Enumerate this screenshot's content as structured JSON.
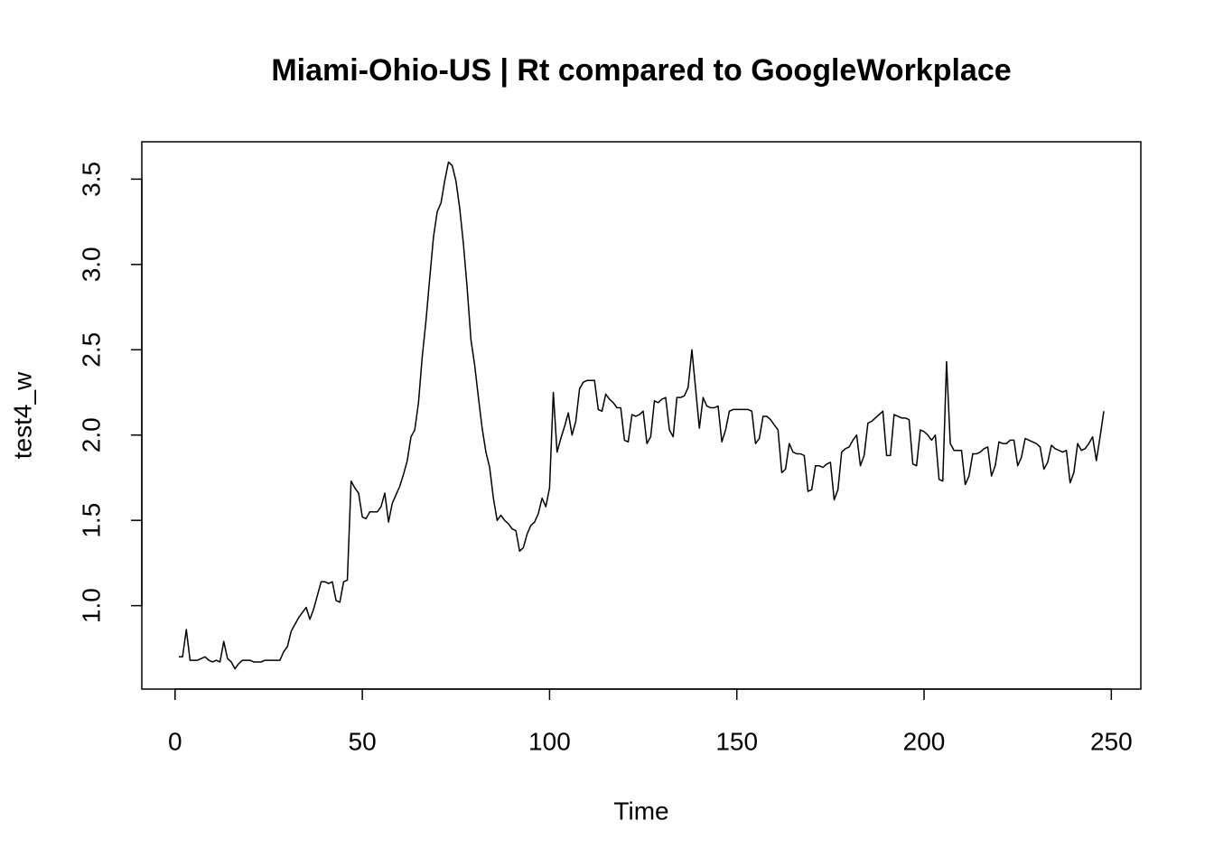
{
  "chart_data": {
    "type": "line",
    "title": "Miami-Ohio-US | Rt compared to GoogleWorkplace",
    "xlabel": "Time",
    "ylabel": "test4_w",
    "color": "#000000",
    "xlim": [
      -8.88,
      257.88
    ],
    "ylim": [
      0.511,
      3.719
    ],
    "xticks": [
      0,
      50,
      100,
      150,
      200,
      250
    ],
    "yticks": [
      {
        "value": 1,
        "label": "1.0"
      },
      1.5,
      {
        "value": 2,
        "label": "2.0"
      },
      2.5,
      {
        "value": 3,
        "label": "3.0"
      },
      3.5
    ],
    "x": [
      1,
      2,
      3,
      4,
      5,
      6,
      7,
      8,
      9,
      10,
      11,
      12,
      13,
      14,
      15,
      16,
      17,
      18,
      19,
      20,
      21,
      22,
      23,
      24,
      25,
      26,
      27,
      28,
      29,
      30,
      31,
      32,
      33,
      34,
      35,
      36,
      37,
      38,
      39,
      40,
      41,
      42,
      43,
      44,
      45,
      46,
      47,
      48,
      49,
      50,
      51,
      52,
      53,
      54,
      55,
      56,
      57,
      58,
      59,
      60,
      61,
      62,
      63,
      64,
      65,
      66,
      67,
      68,
      69,
      70,
      71,
      72,
      73,
      74,
      75,
      76,
      77,
      78,
      79,
      80,
      81,
      82,
      83,
      84,
      85,
      86,
      87,
      88,
      89,
      90,
      91,
      92,
      93,
      94,
      95,
      96,
      97,
      98,
      99,
      100,
      101,
      102,
      103,
      104,
      105,
      106,
      107,
      108,
      109,
      110,
      111,
      112,
      113,
      114,
      115,
      116,
      117,
      118,
      119,
      120,
      121,
      122,
      123,
      124,
      125,
      126,
      127,
      128,
      129,
      130,
      131,
      132,
      133,
      134,
      135,
      136,
      137,
      138,
      139,
      140,
      141,
      142,
      143,
      144,
      145,
      146,
      147,
      148,
      149,
      150,
      151,
      152,
      153,
      154,
      155,
      156,
      157,
      158,
      159,
      160,
      161,
      162,
      163,
      164,
      165,
      166,
      167,
      168,
      169,
      170,
      171,
      172,
      173,
      174,
      175,
      176,
      177,
      178,
      179,
      180,
      181,
      182,
      183,
      184,
      185,
      186,
      187,
      188,
      189,
      190,
      191,
      192,
      193,
      194,
      195,
      196,
      197,
      198,
      199,
      200,
      201,
      202,
      203,
      204,
      205,
      206,
      207,
      208,
      209,
      210,
      211,
      212,
      213,
      214,
      215,
      216,
      217,
      218,
      219,
      220,
      221,
      222,
      223,
      224,
      225,
      226,
      227,
      228,
      229,
      230,
      231,
      232,
      233,
      234,
      235,
      236,
      237,
      238,
      239,
      240,
      241,
      242,
      243,
      244,
      245,
      246,
      247,
      248
    ],
    "values": [
      0.7,
      0.7,
      0.86,
      0.68,
      0.68,
      0.68,
      0.69,
      0.7,
      0.68,
      0.67,
      0.68,
      0.67,
      0.79,
      0.69,
      0.67,
      0.63,
      0.66,
      0.68,
      0.68,
      0.68,
      0.67,
      0.67,
      0.67,
      0.68,
      0.68,
      0.68,
      0.68,
      0.68,
      0.73,
      0.76,
      0.85,
      0.89,
      0.93,
      0.96,
      0.99,
      0.92,
      0.98,
      1.06,
      1.14,
      1.14,
      1.13,
      1.14,
      1.03,
      1.02,
      1.14,
      1.15,
      1.73,
      1.69,
      1.66,
      1.52,
      1.51,
      1.55,
      1.55,
      1.55,
      1.58,
      1.66,
      1.49,
      1.6,
      1.65,
      1.7,
      1.77,
      1.85,
      1.99,
      2.03,
      2.19,
      2.46,
      2.67,
      2.92,
      3.16,
      3.31,
      3.36,
      3.49,
      3.6,
      3.58,
      3.49,
      3.33,
      3.12,
      2.86,
      2.56,
      2.41,
      2.22,
      2.04,
      1.9,
      1.81,
      1.63,
      1.5,
      1.53,
      1.5,
      1.48,
      1.45,
      1.44,
      1.32,
      1.34,
      1.42,
      1.47,
      1.49,
      1.54,
      1.63,
      1.58,
      1.69,
      2.25,
      1.9,
      1.98,
      2.05,
      2.13,
      2.0,
      2.08,
      2.27,
      2.31,
      2.32,
      2.32,
      2.32,
      2.15,
      2.14,
      2.24,
      2.21,
      2.19,
      2.16,
      2.16,
      1.97,
      1.96,
      2.12,
      2.11,
      2.12,
      2.14,
      1.95,
      1.99,
      2.2,
      2.19,
      2.21,
      2.22,
      2.03,
      1.99,
      2.22,
      2.22,
      2.23,
      2.28,
      2.5,
      2.27,
      2.04,
      2.22,
      2.17,
      2.16,
      2.16,
      2.17,
      1.96,
      2.03,
      2.14,
      2.15,
      2.15,
      2.15,
      2.15,
      2.15,
      2.14,
      1.95,
      1.98,
      2.11,
      2.11,
      2.09,
      2.06,
      2.03,
      1.78,
      1.8,
      1.95,
      1.9,
      1.89,
      1.89,
      1.88,
      1.67,
      1.68,
      1.82,
      1.82,
      1.81,
      1.83,
      1.84,
      1.62,
      1.68,
      1.9,
      1.92,
      1.93,
      1.97,
      2.0,
      1.82,
      1.88,
      2.07,
      2.08,
      2.1,
      2.12,
      2.14,
      1.88,
      1.88,
      2.12,
      2.11,
      2.1,
      2.1,
      2.09,
      1.83,
      1.82,
      2.03,
      2.02,
      2.0,
      1.97,
      2.0,
      1.74,
      1.73,
      2.43,
      1.95,
      1.91,
      1.91,
      1.91,
      1.71,
      1.76,
      1.89,
      1.89,
      1.9,
      1.92,
      1.93,
      1.76,
      1.82,
      1.96,
      1.95,
      1.95,
      1.97,
      1.97,
      1.82,
      1.87,
      1.98,
      1.97,
      1.96,
      1.95,
      1.93,
      1.8,
      1.84,
      1.94,
      1.92,
      1.91,
      1.9,
      1.91,
      1.72,
      1.78,
      1.95,
      1.91,
      1.92,
      1.95,
      1.99,
      1.85,
      1.99,
      2.14
    ]
  }
}
